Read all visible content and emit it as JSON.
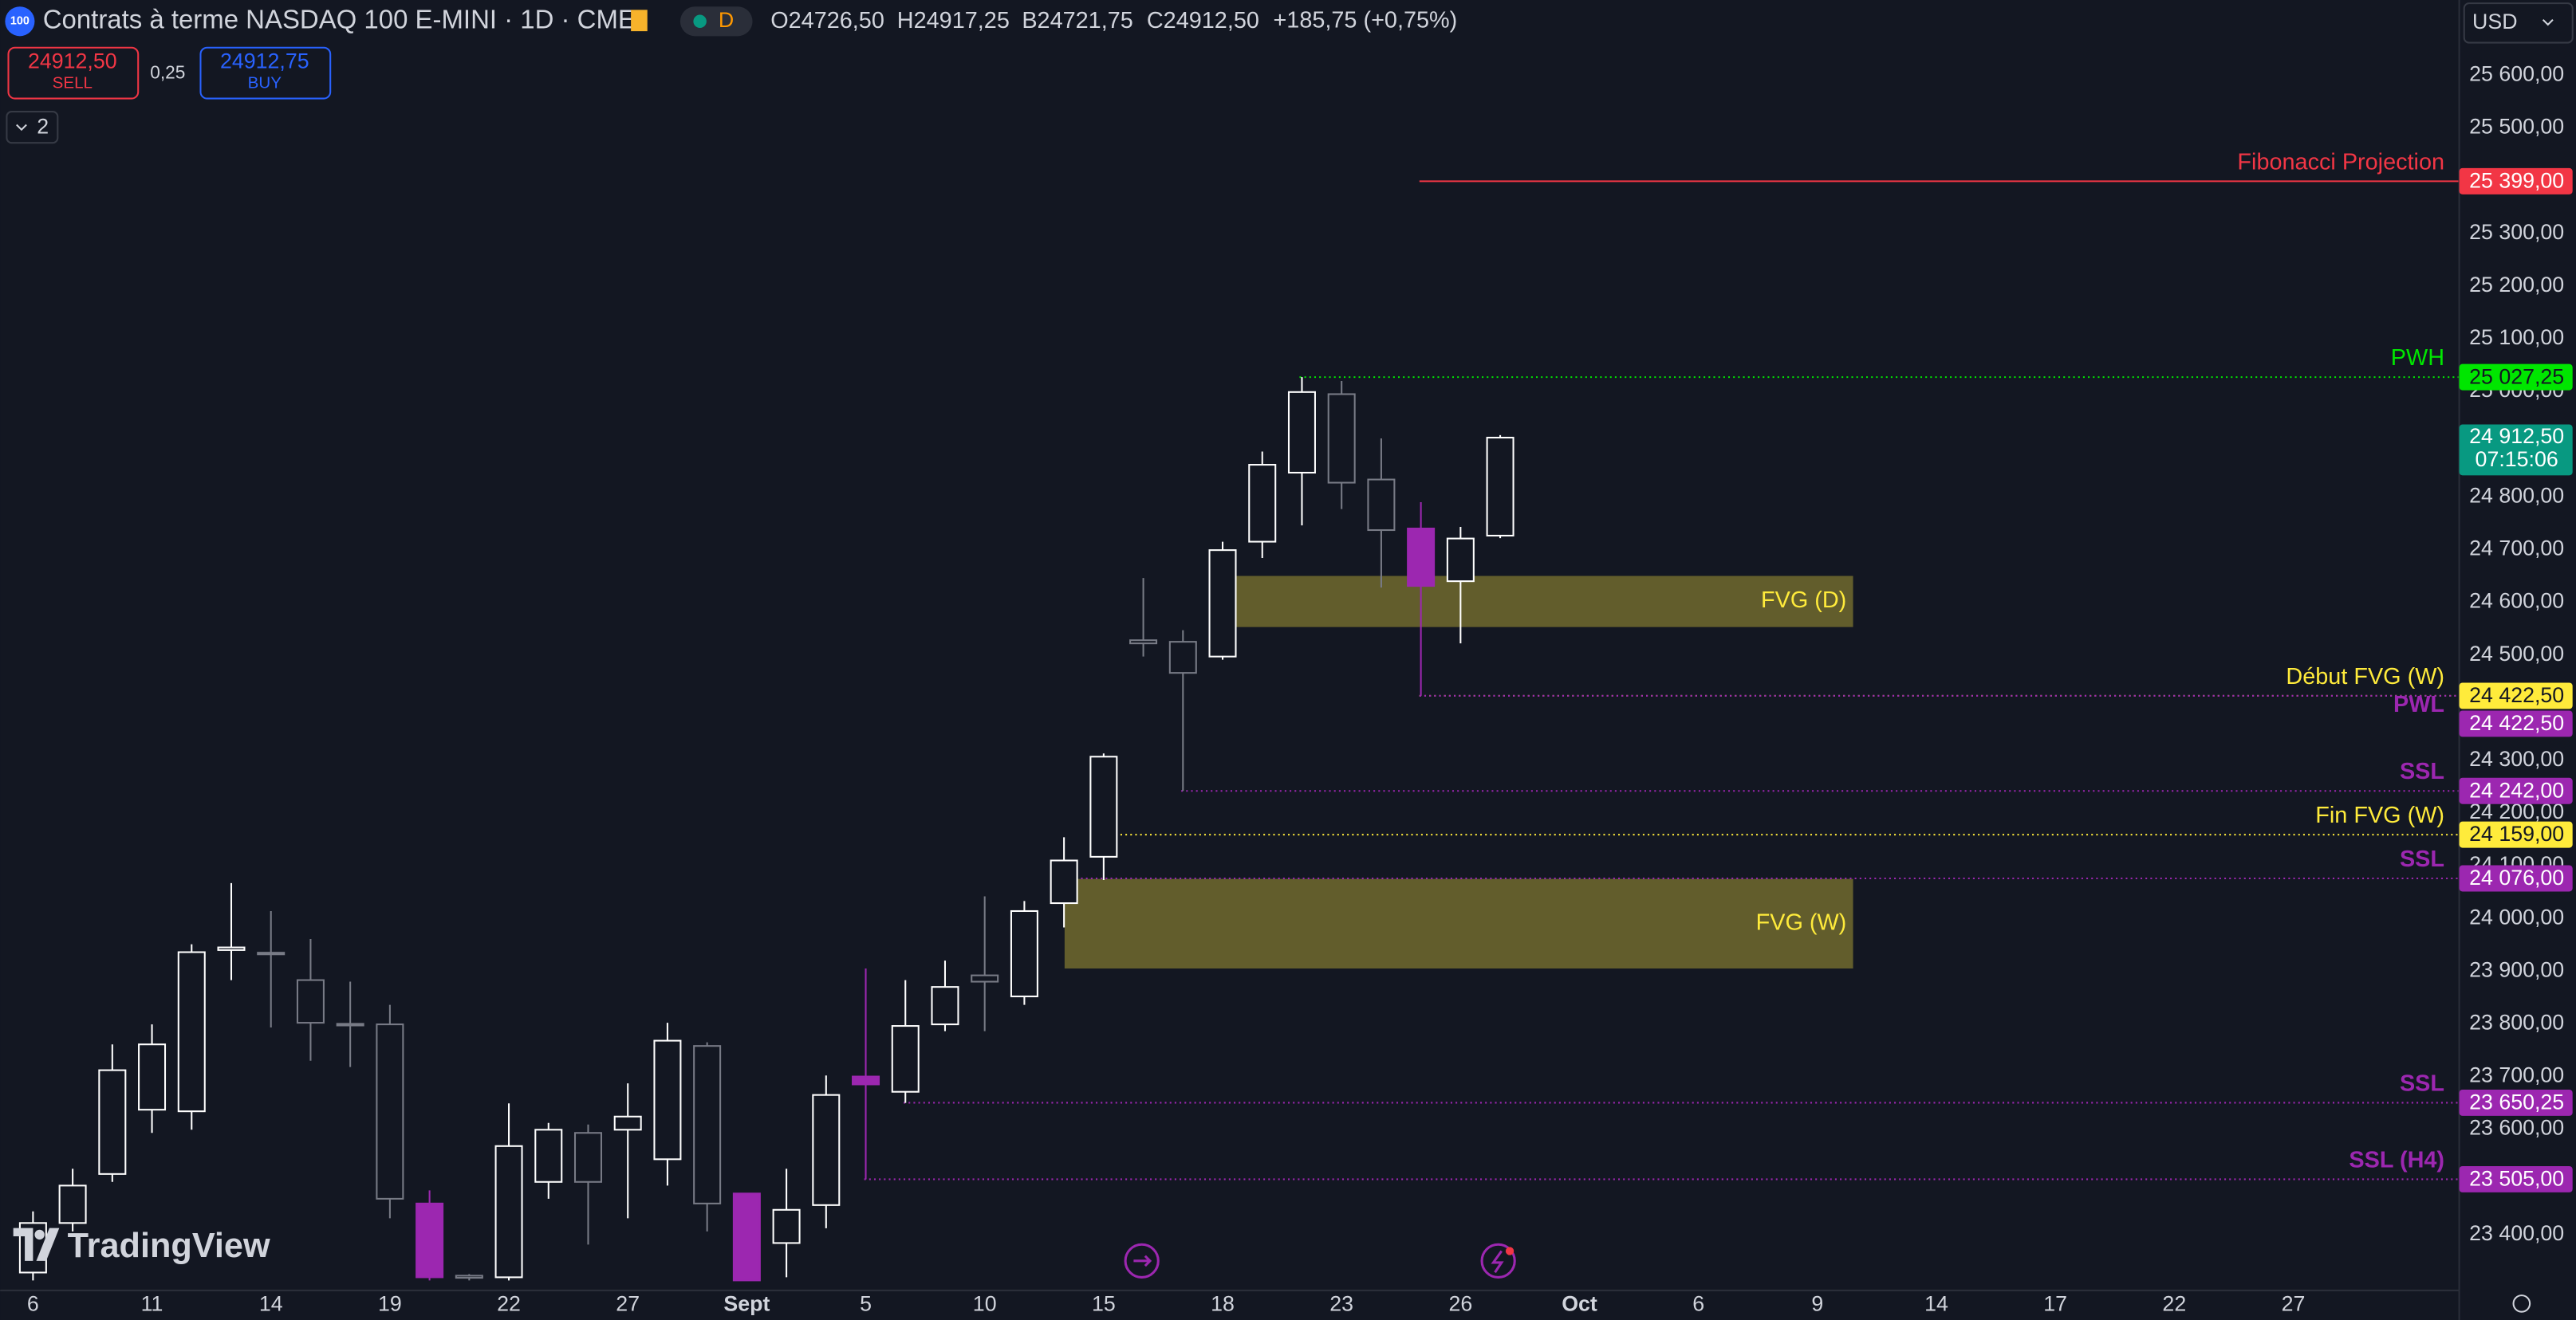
{
  "header": {
    "symbol_badge": "100",
    "title": "Contrats à terme NASDAQ 100 E-MINI · 1D · CME",
    "interval_badge": "D",
    "open_label": "O",
    "open": "24726,50",
    "high_label": "H",
    "high": "24917,25",
    "low_label": "B",
    "low": "24721,75",
    "close_label": "C",
    "close": "24912,50",
    "change": "+185,75 (+0,75%)"
  },
  "trade": {
    "sell_price": "24912,50",
    "sell": "SELL",
    "spread": "0,25",
    "buy_price": "24912,75",
    "buy": "BUY"
  },
  "indicators_count": "2",
  "currency": "USD",
  "watermark": "TradingView",
  "chart_data": {
    "type": "candlestick",
    "grid": false,
    "categories": [
      "6",
      null,
      null,
      "11",
      null,
      null,
      "14",
      null,
      null,
      "19",
      null,
      null,
      "22",
      null,
      null,
      "27",
      null,
      null,
      "Sept",
      null,
      null,
      "5",
      null,
      null,
      "10",
      null,
      null,
      "15",
      null,
      null,
      "18",
      null,
      null,
      "23",
      null,
      null,
      "26",
      null,
      null,
      "Oct",
      null,
      null,
      "6",
      null,
      null,
      "9",
      null,
      null,
      "14",
      null,
      null,
      "17",
      null,
      null,
      "22",
      null,
      null,
      "27"
    ],
    "bold_categories": [
      "Sept",
      "Oct"
    ],
    "open": [
      23328,
      23422,
      23515,
      23637,
      23634,
      23940,
      23935,
      23883,
      23800,
      23799,
      23459,
      23322,
      23319,
      23500,
      23593,
      23599,
      23543,
      23758,
      23478,
      23384,
      23456,
      23700,
      23671,
      23799,
      23892,
      23852,
      24029,
      24117,
      24528,
      24525,
      24497,
      24715,
      24846,
      24995,
      24833,
      24740,
      24640,
      24726.5,
      null,
      null,
      null,
      null,
      null,
      null,
      null,
      null,
      null,
      null,
      null,
      null,
      null,
      null,
      null,
      null,
      null,
      null,
      null,
      null
    ],
    "high": [
      23444,
      23525,
      23761,
      23799,
      23951,
      24067,
      24014,
      23961,
      23880,
      23836,
      23484,
      23325,
      23649,
      23612,
      23609,
      23687,
      23802,
      23765,
      23478,
      23525,
      23702,
      23905,
      23883,
      23920,
      24042,
      24033,
      24154,
      24313,
      24646,
      24547,
      24715,
      24886,
      25027.25,
      25020,
      24911,
      24790,
      24743,
      24917.25,
      null,
      null,
      null,
      null,
      null,
      null,
      null,
      null,
      null,
      null,
      null,
      null,
      null,
      null,
      null,
      null,
      null,
      null,
      null,
      null
    ],
    "low": [
      23313,
      23406,
      23500,
      23593,
      23599,
      23883,
      23793,
      23730,
      23718,
      23431,
      23313,
      23313,
      23313,
      23468,
      23381,
      23431,
      23493,
      23406,
      23313,
      23319,
      23412,
      23505,
      23650,
      23786,
      23786,
      23836,
      23983,
      24073,
      24497,
      24242,
      24491,
      24684,
      24746,
      24777,
      24628,
      24422.5,
      24522,
      24721.75,
      null,
      null,
      null,
      null,
      null,
      null,
      null,
      null,
      null,
      null,
      null,
      null,
      null,
      null,
      null,
      null,
      null,
      null,
      null,
      null
    ],
    "close": [
      23422,
      23493,
      23712,
      23761,
      23936,
      23945,
      23932,
      23802,
      23797,
      23468,
      23319,
      23318,
      23568,
      23599,
      23500,
      23624,
      23768,
      23459,
      23313,
      23447,
      23665,
      23685,
      23796,
      23870,
      23880,
      24014,
      24110,
      24307,
      24522,
      24466,
      24699,
      24861,
      24999,
      24827,
      24737,
      24631,
      24721,
      24912.5,
      null,
      null,
      null,
      null,
      null,
      null,
      null,
      null,
      null,
      null,
      null,
      null,
      null,
      null,
      null,
      null,
      null,
      null,
      null,
      null
    ],
    "colors": [
      "#ffffff",
      "#ffffff",
      "#ffffff",
      "#ffffff",
      "#ffffff",
      "#ffffff",
      "#787b86",
      "#787b86",
      "#787b86",
      "#787b86",
      "#9c27b0",
      "#787b86",
      "#ffffff",
      "#ffffff",
      "#787b86",
      "#ffffff",
      "#ffffff",
      "#787b86",
      "#9c27b0",
      "#ffffff",
      "#ffffff",
      "#9c27b0",
      "#ffffff",
      "#ffffff",
      "#787b86",
      "#ffffff",
      "#ffffff",
      "#ffffff",
      "#787b86",
      "#787b86",
      "#ffffff",
      "#ffffff",
      "#ffffff",
      "#787b86",
      "#787b86",
      "#9c27b0",
      "#ffffff",
      "#ffffff",
      null,
      null,
      null,
      null,
      null,
      null,
      null,
      null,
      null,
      null,
      null,
      null,
      null,
      null,
      null,
      null,
      null,
      null,
      null,
      null
    ],
    "filled_colors": [
      "#9c27b0"
    ],
    "ylim": [
      23294,
      25743
    ],
    "yticks": [
      {
        "value": 25600,
        "label": "25 600,00"
      },
      {
        "value": 25500,
        "label": "25 500,00"
      },
      {
        "value": 25300,
        "label": "25 300,00"
      },
      {
        "value": 25200,
        "label": "25 200,00"
      },
      {
        "value": 25100,
        "label": "25 100,00"
      },
      {
        "value": 25000,
        "label": "25 000,00"
      },
      {
        "value": 24800,
        "label": "24 800,00"
      },
      {
        "value": 24700,
        "label": "24 700,00"
      },
      {
        "value": 24600,
        "label": "24 600,00"
      },
      {
        "value": 24500,
        "label": "24 500,00"
      },
      {
        "value": 24300,
        "label": "24 300,00"
      },
      {
        "value": 24200,
        "label": "24 200,00"
      },
      {
        "value": 24100,
        "label": "24 100,00"
      },
      {
        "value": 24000,
        "label": "24 000,00"
      },
      {
        "value": 23900,
        "label": "23 900,00"
      },
      {
        "value": 23800,
        "label": "23 800,00"
      },
      {
        "value": 23700,
        "label": "23 700,00"
      },
      {
        "value": 23600,
        "label": "23 600,00"
      },
      {
        "value": 23400,
        "label": "23 400,00"
      }
    ],
    "levels": [
      {
        "name": "Fibonacci Projection",
        "value": 25399,
        "value_label": "25 399,00",
        "color": "#f23645",
        "text_color": "#ffffff",
        "bold": false,
        "dashed": false
      },
      {
        "name": "PWH",
        "value": 25027.25,
        "value_label": "25 027,25",
        "color": "#00e600",
        "text_color": "#131722",
        "bold": false,
        "dashed": true
      },
      {
        "name": "Début FVG (W)",
        "value": 24422.5,
        "value_label": "24 422,50",
        "color": "#ffeb3b",
        "text_color": "#131722",
        "bold": false,
        "dashed": true
      },
      {
        "name": "PWL",
        "value": 24422.5,
        "value_label": "24 422,50",
        "color": "#9c27b0",
        "text_color": "#ffffff",
        "bold": true,
        "dashed": true
      },
      {
        "name": "SSL",
        "value": 24242,
        "value_label": "24 242,00",
        "color": "#9c27b0",
        "text_color": "#ffffff",
        "bold": true,
        "dashed": true
      },
      {
        "name": "Fin FVG (W)",
        "value": 24159,
        "value_label": "24 159,00",
        "color": "#ffeb3b",
        "text_color": "#131722",
        "bold": false,
        "dashed": true
      },
      {
        "name": "SSL",
        "value": 24076,
        "value_label": "24 076,00",
        "color": "#9c27b0",
        "text_color": "#ffffff",
        "bold": true,
        "dashed": true
      },
      {
        "name": "SSL",
        "value": 23650.25,
        "value_label": "23 650,25",
        "color": "#9c27b0",
        "text_color": "#ffffff",
        "bold": true,
        "dashed": true
      },
      {
        "name": "SSL (H4)",
        "value": 23505,
        "value_label": "23 505,00",
        "color": "#9c27b0",
        "text_color": "#ffffff",
        "bold": true,
        "dashed": true
      }
    ],
    "zones": [
      {
        "name": "FVG (D)",
        "top": 24650,
        "bottom": 24553,
        "color": "#7d7530"
      },
      {
        "name": "FVG (W)",
        "top": 24075,
        "bottom": 23905,
        "color": "#7d7530"
      }
    ],
    "last_price": {
      "value": 24912.5,
      "label": "24 912,50",
      "countdown": "07:15:06",
      "color": "#089981"
    }
  }
}
